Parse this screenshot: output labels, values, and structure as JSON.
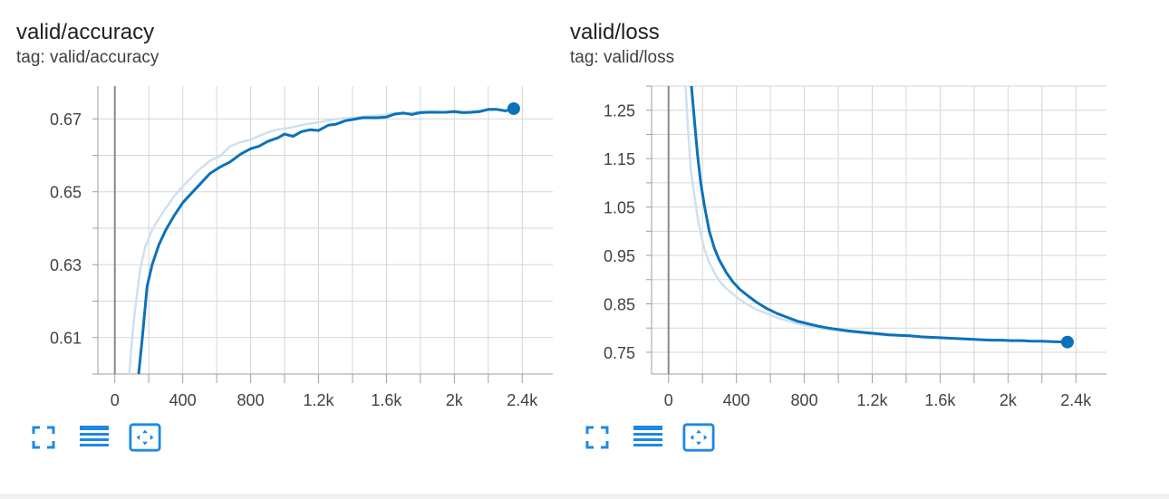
{
  "colors": {
    "series": "#0b72b9",
    "series_raw": "#cfe0ef",
    "grid": "#d6d6d6",
    "axis": "#9e9e9e",
    "zero_line": "#8a8a8a",
    "toolbar_icon": "#1e88e5"
  },
  "cards": [
    {
      "title": "valid/accuracy",
      "tag": "tag: valid/accuracy",
      "toolbar": [
        "fullscreen-icon",
        "data-table-icon",
        "fit-domain-icon"
      ]
    },
    {
      "title": "valid/loss",
      "tag": "tag: valid/loss",
      "toolbar": [
        "fullscreen-icon",
        "data-table-icon",
        "fit-domain-icon"
      ]
    }
  ],
  "chart_data": [
    {
      "type": "line",
      "title": "valid/accuracy",
      "xlim": [
        -100,
        2580
      ],
      "ylim": [
        0.6,
        0.679
      ],
      "x_ticks": [
        0,
        400,
        800,
        1200,
        1600,
        2000,
        2400
      ],
      "x_tick_labels": [
        "0",
        "400",
        "800",
        "1.2k",
        "1.6k",
        "2k",
        "2.4k"
      ],
      "y_ticks": [
        0.61,
        0.63,
        0.65,
        0.67
      ],
      "y_tick_labels": [
        "0.61",
        "0.63",
        "0.65",
        "0.67"
      ],
      "grid": true,
      "series": [
        {
          "role": "smoothed",
          "x": [
            140,
            160,
            190,
            220,
            260,
            300,
            350,
            400,
            450,
            500,
            560,
            620,
            680,
            740,
            800,
            850,
            900,
            960,
            1000,
            1050,
            1100,
            1150,
            1200,
            1260,
            1300,
            1360,
            1400,
            1460,
            1500,
            1550,
            1600,
            1650,
            1700,
            1750,
            1800,
            1850,
            1900,
            1950,
            2000,
            2050,
            2100,
            2150,
            2200,
            2250,
            2300,
            2350
          ],
          "y": [
            0.6,
            0.609,
            0.624,
            0.63,
            0.6355,
            0.6395,
            0.6435,
            0.647,
            0.6495,
            0.652,
            0.655,
            0.6568,
            0.6582,
            0.6603,
            0.6618,
            0.6625,
            0.6638,
            0.6648,
            0.6658,
            0.6652,
            0.6665,
            0.667,
            0.6668,
            0.6683,
            0.6685,
            0.6695,
            0.6698,
            0.6703,
            0.6703,
            0.6703,
            0.6705,
            0.6713,
            0.6716,
            0.6712,
            0.6717,
            0.6718,
            0.6718,
            0.6718,
            0.672,
            0.6717,
            0.6718,
            0.672,
            0.6726,
            0.6726,
            0.6722,
            0.6728
          ]
        },
        {
          "role": "raw",
          "x": [
            85,
            100,
            120,
            150,
            180,
            220,
            250,
            300,
            350,
            400,
            450,
            500,
            560,
            620,
            680,
            740,
            800,
            860,
            920,
            980,
            1040,
            1100,
            1160,
            1220,
            1280,
            1340,
            1400,
            1460,
            1520,
            1580,
            1640,
            1700,
            1760,
            1820,
            1880,
            1940,
            2000,
            2060,
            2120,
            2180,
            2240,
            2300,
            2350
          ],
          "y": [
            0.6,
            0.609,
            0.618,
            0.629,
            0.635,
            0.6395,
            0.642,
            0.6455,
            0.6488,
            0.6515,
            0.6538,
            0.6562,
            0.6585,
            0.6598,
            0.6625,
            0.6636,
            0.6643,
            0.6655,
            0.6666,
            0.6672,
            0.6676,
            0.6683,
            0.6688,
            0.6692,
            0.6698,
            0.6701,
            0.6703,
            0.6706,
            0.6708,
            0.671,
            0.6716,
            0.6713,
            0.6718,
            0.672,
            0.672,
            0.6718,
            0.6722,
            0.6718,
            0.6722,
            0.6724,
            0.6726,
            0.6723,
            0.6728
          ]
        }
      ]
    },
    {
      "type": "line",
      "title": "valid/loss",
      "xlim": [
        -100,
        2580
      ],
      "ylim": [
        0.705,
        1.3
      ],
      "x_ticks": [
        0,
        400,
        800,
        1200,
        1600,
        2000,
        2400
      ],
      "x_tick_labels": [
        "0",
        "400",
        "800",
        "1.2k",
        "1.6k",
        "2k",
        "2.4k"
      ],
      "y_ticks": [
        0.75,
        0.85,
        0.95,
        1.05,
        1.15,
        1.25
      ],
      "y_tick_labels": [
        "0.75",
        "0.85",
        "0.95",
        "1.05",
        "1.15",
        "1.25"
      ],
      "grid": true,
      "series": [
        {
          "role": "smoothed",
          "x": [
            135,
            150,
            170,
            190,
            210,
            240,
            270,
            300,
            340,
            380,
            420,
            470,
            520,
            580,
            640,
            700,
            760,
            820,
            880,
            940,
            1000,
            1060,
            1120,
            1180,
            1240,
            1300,
            1360,
            1420,
            1480,
            1540,
            1600,
            1660,
            1720,
            1780,
            1840,
            1900,
            1960,
            2020,
            2080,
            2140,
            2200,
            2260,
            2350
          ],
          "y": [
            1.3,
            1.24,
            1.16,
            1.1,
            1.055,
            1.0,
            0.965,
            0.94,
            0.915,
            0.895,
            0.88,
            0.866,
            0.853,
            0.84,
            0.83,
            0.822,
            0.814,
            0.809,
            0.804,
            0.8,
            0.797,
            0.794,
            0.792,
            0.79,
            0.788,
            0.786,
            0.785,
            0.784,
            0.782,
            0.781,
            0.78,
            0.779,
            0.778,
            0.777,
            0.776,
            0.775,
            0.775,
            0.774,
            0.774,
            0.773,
            0.773,
            0.772,
            0.771
          ]
        },
        {
          "role": "raw",
          "x": [
            100,
            115,
            130,
            150,
            170,
            190,
            210,
            240,
            270,
            300,
            340,
            380,
            420,
            470,
            520,
            580,
            640,
            700,
            760,
            820,
            880,
            940,
            1000,
            1060,
            1120,
            1180,
            1240,
            1300,
            1360,
            1420,
            1480,
            1540,
            1600,
            1660,
            1720,
            1780,
            1840,
            1900,
            1960,
            2020,
            2080,
            2140,
            2200,
            2260,
            2350
          ],
          "y": [
            1.3,
            1.21,
            1.13,
            1.08,
            1.03,
            0.995,
            0.965,
            0.935,
            0.915,
            0.897,
            0.882,
            0.87,
            0.859,
            0.848,
            0.838,
            0.83,
            0.821,
            0.815,
            0.809,
            0.805,
            0.8,
            0.797,
            0.794,
            0.792,
            0.79,
            0.788,
            0.786,
            0.785,
            0.784,
            0.783,
            0.781,
            0.78,
            0.78,
            0.779,
            0.778,
            0.777,
            0.776,
            0.775,
            0.775,
            0.774,
            0.774,
            0.773,
            0.773,
            0.772,
            0.771
          ]
        }
      ]
    }
  ]
}
